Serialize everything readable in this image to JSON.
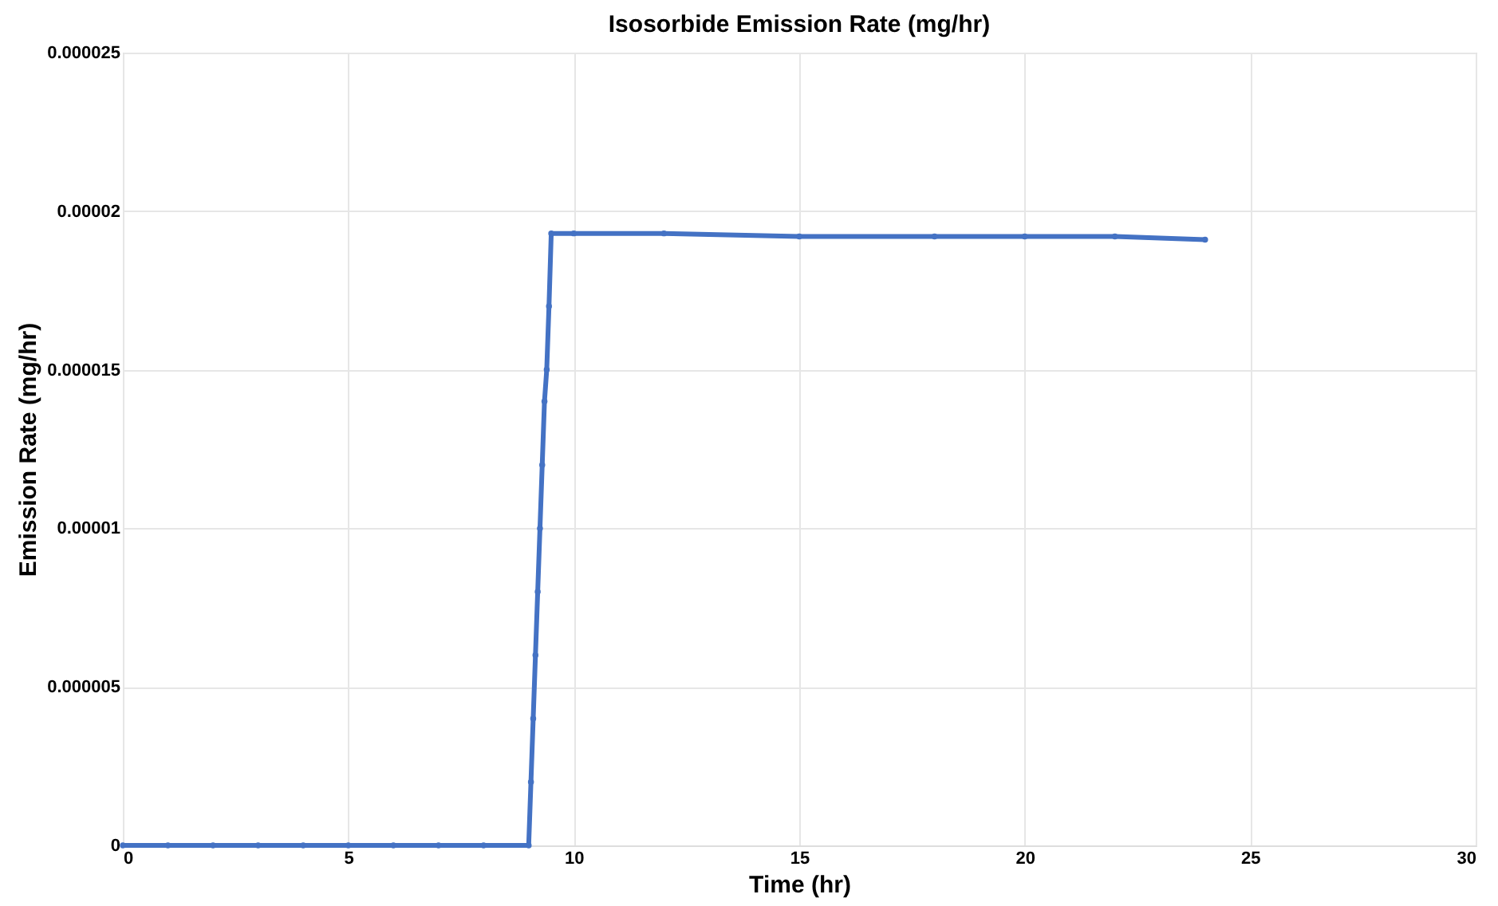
{
  "chart_data": {
    "type": "line",
    "title": "Isosorbide Emission Rate (mg/hr)",
    "xlabel": "Time (hr)",
    "ylabel": "Emission Rate (mg/hr)",
    "series": [
      {
        "color": "#4472c4",
        "x": [
          0,
          1,
          2,
          3,
          4,
          5,
          6,
          7,
          8,
          9,
          9.05,
          9.1,
          9.15,
          9.2,
          9.25,
          9.3,
          9.35,
          9.4,
          9.45,
          9.5,
          10,
          12,
          15,
          18,
          20,
          22,
          24
        ],
        "values": [
          0,
          0,
          0,
          0,
          0,
          0,
          0,
          0,
          0,
          0,
          2e-06,
          4e-06,
          6e-06,
          8e-06,
          1e-05,
          1.2e-05,
          1.4e-05,
          1.5e-05,
          1.7e-05,
          1.93e-05,
          1.93e-05,
          1.93e-05,
          1.92e-05,
          1.92e-05,
          1.92e-05,
          1.92e-05,
          1.91e-05
        ]
      }
    ],
    "xlim": [
      0,
      30
    ],
    "xticks": [
      0,
      5,
      10,
      15,
      20,
      25,
      30
    ],
    "ylim": [
      0,
      2.5e-05
    ],
    "yticks": [
      0,
      {
        "value": 5e-06,
        "label": "0.000005"
      },
      {
        "value": 1e-05,
        "label": "0.00001"
      },
      {
        "value": 1.5e-05,
        "label": "0.000015"
      },
      {
        "value": 2e-05,
        "label": "0.00002"
      },
      {
        "value": 2.5e-05,
        "label": "0.000025"
      }
    ],
    "grid": true,
    "marker": "circle",
    "line_style": "solid"
  }
}
